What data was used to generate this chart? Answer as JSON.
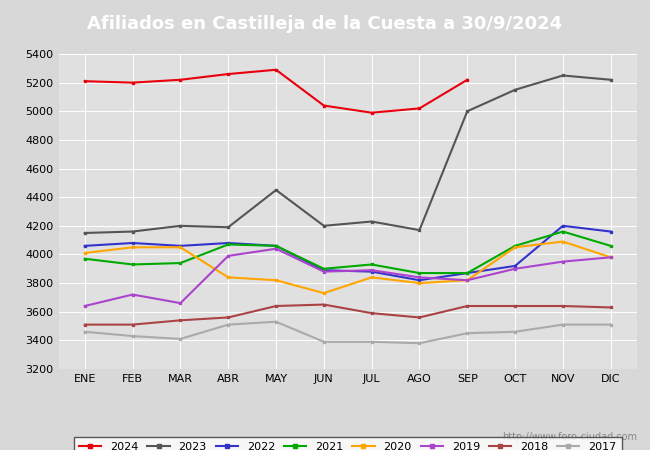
{
  "title": "Afiliados en Castilleja de la Cuesta a 30/9/2024",
  "ylim": [
    3200,
    5400
  ],
  "yticks": [
    3200,
    3400,
    3600,
    3800,
    4000,
    4200,
    4400,
    4600,
    4800,
    5000,
    5200,
    5400
  ],
  "months": [
    "ENE",
    "FEB",
    "MAR",
    "ABR",
    "MAY",
    "JUN",
    "JUL",
    "AGO",
    "SEP",
    "OCT",
    "NOV",
    "DIC"
  ],
  "watermark": "http://www.foro-ciudad.com",
  "series": {
    "2024": {
      "color": "#e8000d",
      "data": [
        5210,
        5200,
        5220,
        5260,
        5290,
        5040,
        4990,
        5020,
        5220,
        null,
        null,
        null
      ]
    },
    "2023": {
      "color": "#555555",
      "data": [
        4150,
        4160,
        4200,
        4190,
        4450,
        4200,
        4230,
        4170,
        5000,
        5150,
        5250,
        5220
      ]
    },
    "2022": {
      "color": "#3333cc",
      "data": [
        4060,
        4080,
        4060,
        4080,
        4060,
        3890,
        3880,
        3820,
        3870,
        3920,
        4200,
        4160
      ]
    },
    "2021": {
      "color": "#00aa00",
      "data": [
        3970,
        3930,
        3940,
        4070,
        4060,
        3900,
        3930,
        3870,
        3870,
        4060,
        4160,
        4060
      ]
    },
    "2020": {
      "color": "#ffa500",
      "data": [
        4010,
        4050,
        4050,
        3840,
        3820,
        3730,
        3840,
        3800,
        3820,
        4050,
        4090,
        3980
      ]
    },
    "2019": {
      "color": "#aa44cc",
      "data": [
        3640,
        3720,
        3660,
        3990,
        4040,
        3880,
        3890,
        3840,
        3820,
        3900,
        3950,
        3980
      ]
    },
    "2018": {
      "color": "#aa4444",
      "data": [
        3510,
        3510,
        3540,
        3560,
        3640,
        3650,
        3590,
        3560,
        3640,
        3640,
        3640,
        3630
      ]
    },
    "2017": {
      "color": "#aaaaaa",
      "data": [
        3460,
        3430,
        3410,
        3510,
        3530,
        3390,
        3390,
        3380,
        3450,
        3460,
        3510,
        3510
      ]
    }
  },
  "legend_order": [
    "2024",
    "2023",
    "2022",
    "2021",
    "2020",
    "2019",
    "2018",
    "2017"
  ],
  "title_bg": "#4da6ff",
  "title_color": "#ffffff",
  "background_color": "#d8d8d8",
  "plot_bg": "#e0e0e0",
  "grid_color": "#ffffff",
  "fontsize_title": 13,
  "fontsize_ticks": 8,
  "fontsize_legend": 8
}
